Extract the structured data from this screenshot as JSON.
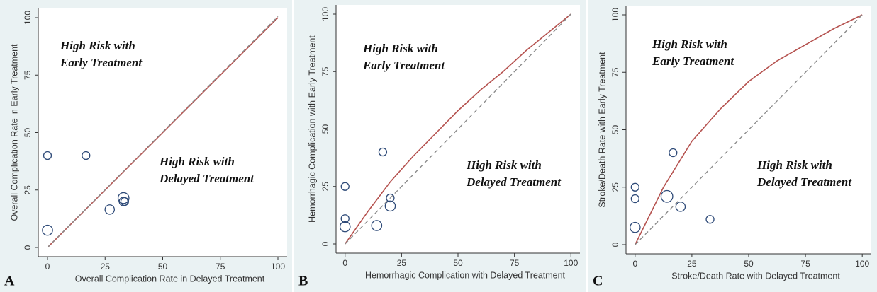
{
  "chart_data": [
    {
      "type": "scatter",
      "panel_label": "A",
      "xlabel": "Overall Complication Rate in Delayed Treatment",
      "ylabel": "Overall Complication Rate in Early Treatment",
      "annotations": [
        [
          "High Risk with",
          "Early Treatment"
        ],
        [
          "High Risk with",
          "Delayed Treatment"
        ]
      ],
      "xlim": [
        -4,
        104
      ],
      "ylim": [
        -4,
        104
      ],
      "xticks": [
        0,
        25,
        50,
        75,
        100
      ],
      "yticks": [
        0,
        25,
        50,
        75,
        100
      ],
      "marker_color": "#2e4a78",
      "x": [
        0,
        16.7,
        0,
        27,
        33,
        33,
        33.5
      ],
      "values": [
        40,
        40,
        7.5,
        16.5,
        20,
        21.5,
        20
      ],
      "sizes": [
        1,
        1,
        1.3,
        1.2,
        1.1,
        1.4,
        1
      ],
      "lines": [
        {
          "color": "#b5524f",
          "style": "solid",
          "x": [
            0,
            100
          ],
          "y": [
            0,
            100
          ]
        },
        {
          "color": "#888888",
          "style": "dashed",
          "x": [
            0,
            100
          ],
          "y": [
            0,
            100.5
          ]
        }
      ]
    },
    {
      "type": "scatter",
      "panel_label": "B",
      "xlabel": "Hemorrhagic Complication with Delayed Treatment",
      "ylabel": "Hemorrhagic Complication with Early Treatment",
      "annotations": [
        [
          "High Risk with",
          "Early Treatment"
        ],
        [
          "High Risk with",
          "Delayed Treatment"
        ]
      ],
      "xlim": [
        -4,
        104
      ],
      "ylim": [
        -4,
        104
      ],
      "xticks": [
        0,
        25,
        50,
        75,
        100
      ],
      "yticks": [
        0,
        25,
        50,
        75,
        100
      ],
      "marker_color": "#2e4a78",
      "x": [
        0,
        0,
        0,
        14,
        16.7,
        20,
        20
      ],
      "values": [
        25,
        11,
        7.5,
        8,
        40,
        20,
        16.5
      ],
      "sizes": [
        1,
        1,
        1.3,
        1.3,
        1,
        1,
        1.3
      ],
      "lines": [
        {
          "color": "#b5524f",
          "style": "solid",
          "x": [
            0,
            10,
            20,
            30,
            40,
            50,
            60,
            70,
            80,
            90,
            100
          ],
          "y": [
            0,
            14,
            27,
            38,
            48,
            58,
            67,
            75,
            84,
            92,
            100
          ]
        },
        {
          "color": "#888888",
          "style": "dashed",
          "x": [
            0,
            100
          ],
          "y": [
            0,
            100
          ]
        }
      ]
    },
    {
      "type": "scatter",
      "panel_label": "C",
      "xlabel": "Stroke/Death Rate with Delayed Treatment",
      "ylabel": "Stroke/Death Rate with Early Treatment",
      "annotations": [
        [
          "High Risk with",
          "Early Treatment"
        ],
        [
          "High Risk with",
          "Delayed Treatment"
        ]
      ],
      "xlim": [
        -4,
        104
      ],
      "ylim": [
        -4,
        104
      ],
      "xticks": [
        0,
        25,
        50,
        75,
        100
      ],
      "yticks": [
        0,
        25,
        50,
        75,
        100
      ],
      "marker_color": "#2e4a78",
      "x": [
        0,
        0,
        0,
        14,
        16.7,
        20,
        33
      ],
      "values": [
        25,
        20,
        7.5,
        21,
        40,
        16.5,
        11
      ],
      "sizes": [
        1,
        1,
        1.3,
        1.5,
        1,
        1.2,
        1
      ],
      "lines": [
        {
          "color": "#b5524f",
          "style": "solid",
          "x": [
            0,
            12.5,
            25,
            37.5,
            50,
            62.5,
            75,
            87.5,
            100
          ],
          "y": [
            0,
            25,
            45,
            59,
            71,
            80,
            87,
            94,
            100
          ]
        },
        {
          "color": "#888888",
          "style": "dashed",
          "x": [
            0,
            100
          ],
          "y": [
            0,
            100
          ]
        }
      ]
    }
  ]
}
